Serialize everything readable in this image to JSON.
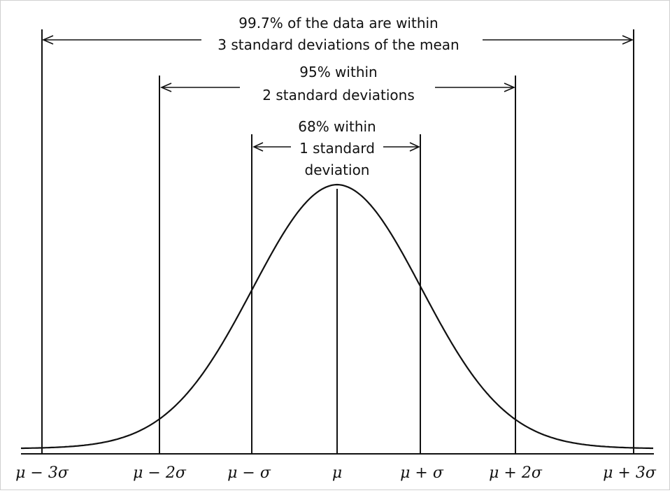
{
  "diagram": {
    "annotations": {
      "three_sigma": {
        "line1": "99.7% of the data are within",
        "line2": "3 standard deviations of the mean"
      },
      "two_sigma": {
        "line1": "95% within",
        "line2": "2 standard deviations"
      },
      "one_sigma": {
        "line1": "68% within",
        "line2": "1 standard",
        "line3": "deviation"
      }
    },
    "axis_ticks": [
      "μ − 3σ",
      "μ − 2σ",
      "μ − σ",
      "μ",
      "μ + σ",
      "μ + 2σ",
      "μ + 3σ"
    ],
    "colors": {
      "ink": "#111111",
      "background": "#ffffff",
      "frame": "#c8c8c8"
    }
  }
}
